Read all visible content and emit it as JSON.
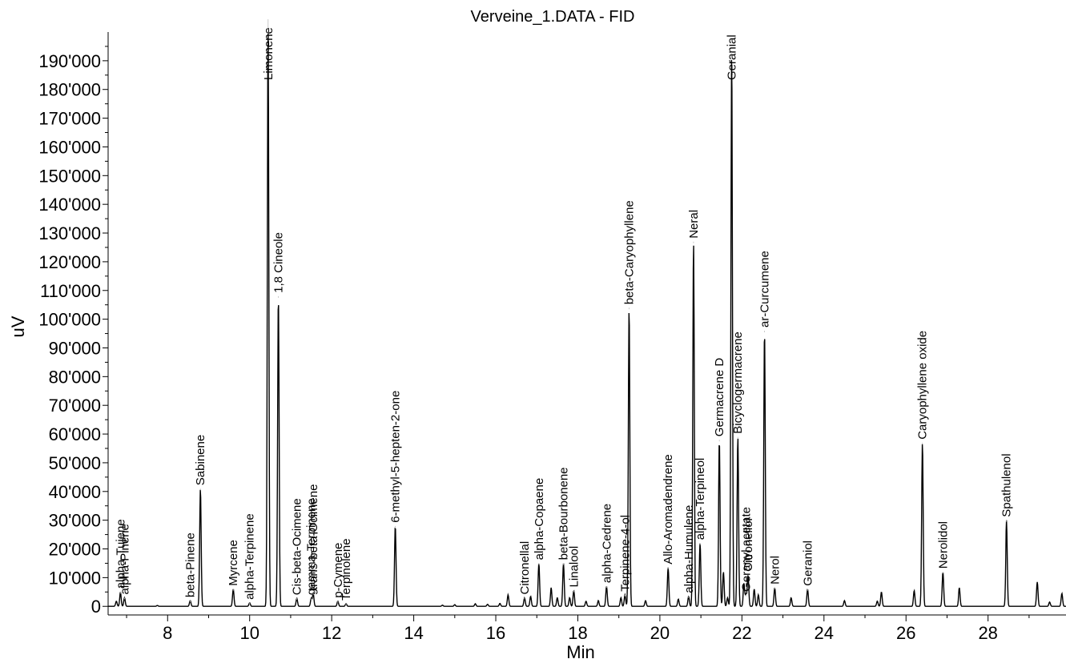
{
  "chart_data": {
    "type": "line",
    "title": "Verveine_1.DATA - FID",
    "xlabel": "Min",
    "ylabel": "uV",
    "xlim": [
      6.55,
      29.9
    ],
    "ylim": [
      -3000,
      200000
    ],
    "xticks": [
      8,
      10,
      12,
      14,
      16,
      18,
      20,
      22,
      24,
      26,
      28
    ],
    "yticks": [
      0,
      10000,
      20000,
      30000,
      40000,
      50000,
      60000,
      70000,
      80000,
      90000,
      100000,
      110000,
      120000,
      130000,
      140000,
      150000,
      160000,
      170000,
      180000,
      190000
    ],
    "ytick_labels": [
      "0",
      "10'000",
      "20'000",
      "30'000",
      "40'000",
      "50'000",
      "60'000",
      "70'000",
      "80'000",
      "90'000",
      "100'000",
      "110'000",
      "120'000",
      "130'000",
      "140'000",
      "150'000",
      "160'000",
      "170'000",
      "180'000",
      "190'000"
    ],
    "grid": false,
    "baseline": 0,
    "line_color": "#000000",
    "peaks": [
      {
        "rt": 6.75,
        "height": 1800
      },
      {
        "rt": 6.85,
        "height": 5000,
        "label": "alpha-Tujene"
      },
      {
        "rt": 6.95,
        "height": 3000,
        "label": "alpha-Pinene"
      },
      {
        "rt": 7.75,
        "height": 300
      },
      {
        "rt": 8.55,
        "height": 2000,
        "label": "beta-Pinene"
      },
      {
        "rt": 8.8,
        "height": 41000,
        "label": "Sabinene"
      },
      {
        "rt": 9.6,
        "height": 6000,
        "label": "Myrcene"
      },
      {
        "rt": 10.0,
        "height": 1200,
        "label": "alpha-Terpinene"
      },
      {
        "rt": 10.45,
        "height": 205000,
        "label": "Limonene"
      },
      {
        "rt": 10.7,
        "height": 108000,
        "label": "1,8 Cineole"
      },
      {
        "rt": 11.15,
        "height": 2800,
        "label": "Cis-beta-Ocimene"
      },
      {
        "rt": 11.5,
        "height": 2800,
        "label": "gamma-Terpinene"
      },
      {
        "rt": 11.55,
        "height": 4500,
        "label": "trans-beta-Ocimene"
      },
      {
        "rt": 12.15,
        "height": 1800,
        "label": "p-Cymene"
      },
      {
        "rt": 12.35,
        "height": 900,
        "label": "Terpinolene"
      },
      {
        "rt": 13.55,
        "height": 28000,
        "label": "6-methyl-5-hepten-2-one"
      },
      {
        "rt": 14.7,
        "height": 400
      },
      {
        "rt": 15.0,
        "height": 600
      },
      {
        "rt": 15.5,
        "height": 900
      },
      {
        "rt": 15.8,
        "height": 700
      },
      {
        "rt": 16.1,
        "height": 1000
      },
      {
        "rt": 16.3,
        "height": 4000
      },
      {
        "rt": 16.7,
        "height": 3000,
        "label": "Citronellal"
      },
      {
        "rt": 16.85,
        "height": 3500
      },
      {
        "rt": 17.05,
        "height": 15000,
        "label": "alpha-Copaene"
      },
      {
        "rt": 17.35,
        "height": 6500
      },
      {
        "rt": 17.5,
        "height": 3000
      },
      {
        "rt": 17.65,
        "height": 15000,
        "label": "beta-Bourbonene"
      },
      {
        "rt": 17.8,
        "height": 3000
      },
      {
        "rt": 17.9,
        "height": 5500,
        "label": "Linalool"
      },
      {
        "rt": 18.2,
        "height": 1800
      },
      {
        "rt": 18.5,
        "height": 2000
      },
      {
        "rt": 18.7,
        "height": 7000,
        "label": "alpha-Cedrene"
      },
      {
        "rt": 19.05,
        "height": 3000
      },
      {
        "rt": 19.15,
        "height": 4000,
        "label": "Terpinene-4-ol"
      },
      {
        "rt": 19.25,
        "height": 104000,
        "label": "beta-Caryophyllene"
      },
      {
        "rt": 19.65,
        "height": 2000
      },
      {
        "rt": 20.2,
        "height": 13500,
        "label": "Allo-Aromadendrene"
      },
      {
        "rt": 20.45,
        "height": 2500
      },
      {
        "rt": 20.7,
        "height": 3500,
        "label": "alpha-Humulene"
      },
      {
        "rt": 20.82,
        "height": 127000,
        "label": "Neral"
      },
      {
        "rt": 20.98,
        "height": 22000,
        "label": "alpha-Terpineol"
      },
      {
        "rt": 21.45,
        "height": 58000,
        "label": "Germacrene D"
      },
      {
        "rt": 21.55,
        "height": 12000
      },
      {
        "rt": 21.65,
        "height": 3000
      },
      {
        "rt": 21.75,
        "height": 193000,
        "label": "Geranial"
      },
      {
        "rt": 21.9,
        "height": 59000,
        "label": "Bicyclogermacrene"
      },
      {
        "rt": 22.05,
        "height": 8000
      },
      {
        "rt": 22.1,
        "height": 4000,
        "label": "Geranyl acetate"
      },
      {
        "rt": 22.15,
        "height": 11000,
        "label": "Citronellol"
      },
      {
        "rt": 22.3,
        "height": 6000
      },
      {
        "rt": 22.4,
        "height": 4000
      },
      {
        "rt": 22.55,
        "height": 96000,
        "label": "ar-Curcumene"
      },
      {
        "rt": 22.8,
        "height": 6500,
        "label": "Nerol"
      },
      {
        "rt": 23.2,
        "height": 3000
      },
      {
        "rt": 23.6,
        "height": 6000,
        "label": "Geraniol"
      },
      {
        "rt": 24.5,
        "height": 2000
      },
      {
        "rt": 25.3,
        "height": 1800
      },
      {
        "rt": 25.4,
        "height": 5000
      },
      {
        "rt": 26.2,
        "height": 5500
      },
      {
        "rt": 26.4,
        "height": 57000,
        "label": "Caryophyllene oxide"
      },
      {
        "rt": 26.9,
        "height": 12000,
        "label": "Nerolidol"
      },
      {
        "rt": 27.3,
        "height": 6500
      },
      {
        "rt": 28.45,
        "height": 30000,
        "label": "Spathulenol"
      },
      {
        "rt": 29.2,
        "height": 8500
      },
      {
        "rt": 29.5,
        "height": 1500
      },
      {
        "rt": 29.8,
        "height": 4500
      }
    ]
  }
}
